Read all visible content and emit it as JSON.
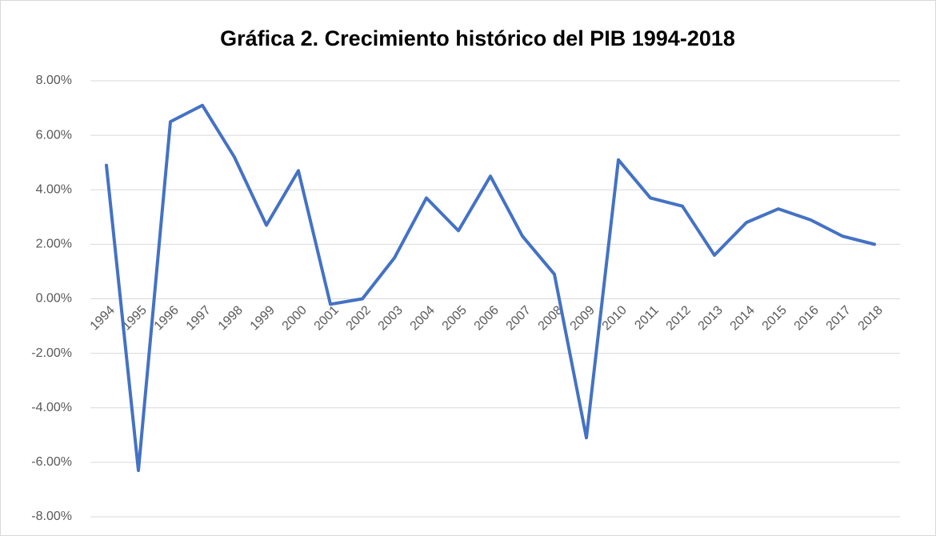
{
  "chart_data": {
    "type": "line",
    "title": "Gráfica 2. Crecimiento histórico del PIB 1994-2018",
    "categories": [
      "1994",
      "1995",
      "1996",
      "1997",
      "1998",
      "1999",
      "2000",
      "2001",
      "2002",
      "2003",
      "2004",
      "2005",
      "2006",
      "2007",
      "2008",
      "2009",
      "2010",
      "2011",
      "2012",
      "2013",
      "2014",
      "2015",
      "2016",
      "2017",
      "2018"
    ],
    "values": [
      4.9,
      -6.3,
      6.5,
      7.1,
      5.2,
      2.7,
      4.7,
      -0.2,
      0.0,
      1.5,
      3.7,
      2.5,
      4.5,
      2.3,
      0.9,
      -5.1,
      5.1,
      3.7,
      3.4,
      1.6,
      2.8,
      3.3,
      2.9,
      2.3,
      2.0
    ],
    "color": "#4472c4",
    "ylim": [
      -8,
      8
    ],
    "yticks": [
      {
        "value": -8,
        "label": "-8.00%"
      },
      {
        "value": -6,
        "label": "-6.00%"
      },
      {
        "value": -4,
        "label": "-4.00%"
      },
      {
        "value": -2,
        "label": "-2.00%"
      },
      {
        "value": 0,
        "label": "0.00%"
      },
      {
        "value": 2,
        "label": "2.00%"
      },
      {
        "value": 4,
        "label": "4.00%"
      },
      {
        "value": 6,
        "label": "6.00%"
      },
      {
        "value": 8,
        "label": "8.00%"
      }
    ],
    "grid": true
  }
}
